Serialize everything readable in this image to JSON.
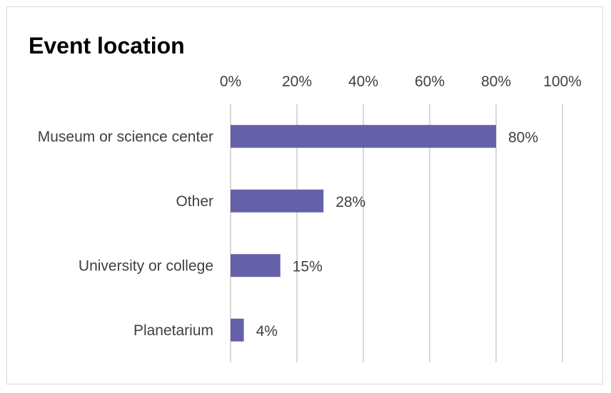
{
  "chart_data": {
    "type": "bar",
    "orientation": "horizontal",
    "title": "Event location",
    "categories": [
      "Museum or science center",
      "Other",
      "University or college",
      "Planetarium"
    ],
    "values": [
      80,
      28,
      15,
      4
    ],
    "data_labels": [
      "80%",
      "28%",
      "15%",
      "4%"
    ],
    "xlim": [
      0,
      100
    ],
    "xticks": [
      0,
      20,
      40,
      60,
      80,
      100
    ],
    "xtick_labels": [
      "0%",
      "20%",
      "40%",
      "60%",
      "80%",
      "100%"
    ],
    "xaxis_position": "top",
    "grid": true,
    "legend": "none",
    "bar_color": "#6461a9",
    "grid_color": "#d9d9d9"
  }
}
